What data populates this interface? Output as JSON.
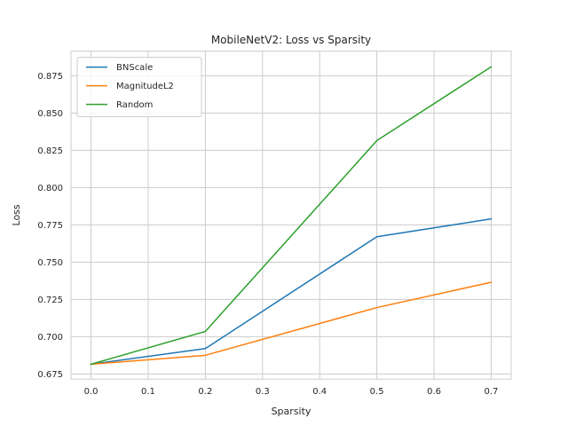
{
  "chart_data": {
    "type": "line",
    "title": "MobileNetV2: Loss vs Sparsity",
    "xlabel": "Sparsity",
    "ylabel": "Loss",
    "xlim": [
      -0.035,
      0.735
    ],
    "ylim": [
      0.6715,
      0.8915
    ],
    "xticks": [
      0.0,
      0.1,
      0.2,
      0.3,
      0.4,
      0.5,
      0.6,
      0.7
    ],
    "xtick_labels": [
      "0.0",
      "0.1",
      "0.2",
      "0.3",
      "0.4",
      "0.5",
      "0.6",
      "0.7"
    ],
    "yticks": [
      0.675,
      0.7,
      0.725,
      0.75,
      0.775,
      0.8,
      0.825,
      0.85,
      0.875
    ],
    "ytick_labels": [
      "0.675",
      "0.700",
      "0.725",
      "0.750",
      "0.775",
      "0.800",
      "0.825",
      "0.850",
      "0.875"
    ],
    "grid": true,
    "legend_position": "top-left",
    "x": [
      0.0,
      0.2,
      0.5,
      0.7
    ],
    "series": [
      {
        "name": "BNScale",
        "color": "#1f77b4",
        "values": [
          0.6815,
          0.692,
          0.767,
          0.779
        ]
      },
      {
        "name": "MagnitudeL2",
        "color": "#ff7f0e",
        "values": [
          0.6815,
          0.6875,
          0.7195,
          0.7365
        ]
      },
      {
        "name": "Random",
        "color": "#2ca02c",
        "values": [
          0.6815,
          0.7035,
          0.8315,
          0.881
        ]
      }
    ]
  }
}
